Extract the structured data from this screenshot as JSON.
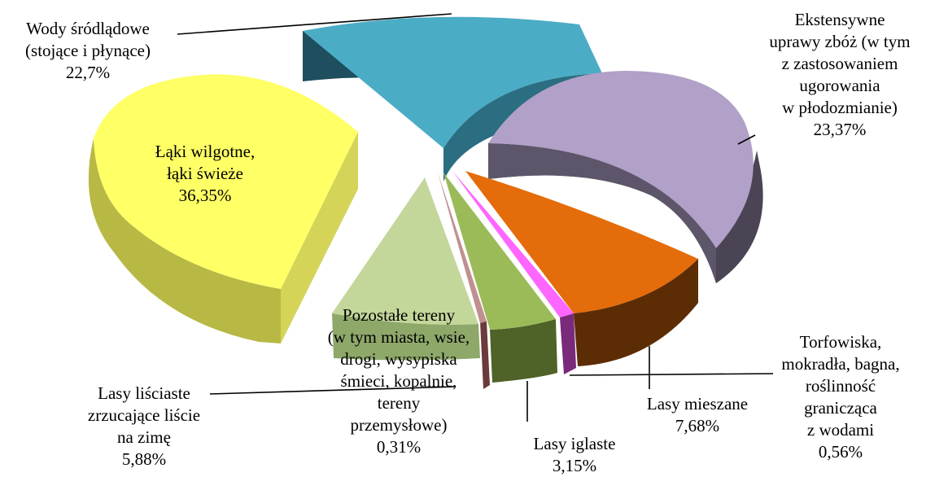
{
  "chart_data": {
    "type": "pie",
    "style": "3d-exploded",
    "title": "",
    "slices": [
      {
        "id": "woda",
        "label_lines": [
          "Wody śródlądowe",
          "(stojące i płynące)",
          "22,7%"
        ],
        "value": 22.7,
        "color": "#4BACC6"
      },
      {
        "id": "uprawy",
        "label_lines": [
          "Ekstensywne",
          "uprawy zbóż (w tym",
          "z zastosowaniem",
          "ugorowania",
          "w płodozmianie)",
          "23,37%"
        ],
        "value": 23.37,
        "color": "#B1A0C7"
      },
      {
        "id": "mieszane",
        "label_lines": [
          "Lasy mieszane",
          "7,68%"
        ],
        "value": 7.68,
        "color": "#E46C0A"
      },
      {
        "id": "torfowiska",
        "label_lines": [
          "Torfowiska,",
          "mokradła, bagna,",
          "roślinność",
          "granicząca",
          "z wodami",
          "0,56%"
        ],
        "value": 0.56,
        "color": "#FF66FF"
      },
      {
        "id": "iglaste",
        "label_lines": [
          "Lasy iglaste",
          "3,15%"
        ],
        "value": 3.15,
        "color": "#9BBB59"
      },
      {
        "id": "lisciaste",
        "label_lines": [
          "Lasy liściaste",
          "zrzucające liście",
          "na zimę",
          "5,88%"
        ],
        "value": 5.88,
        "color": "#C09090"
      },
      {
        "id": "pozostale",
        "label_lines": [
          "Pozostałe tereny",
          "(w tym miasta, wsie,",
          "drogi, wysypiska",
          "śmieci, kopalnie,",
          "tereny",
          "przemysłowe)",
          "0,31%"
        ],
        "value": 0.31,
        "color": "#C4D79B"
      },
      {
        "id": "laki",
        "label_lines": [
          "Łąki wilgotne,",
          "łąki świeże",
          "36,35%"
        ],
        "value": 36.35,
        "color": "#FFFF66"
      }
    ]
  }
}
